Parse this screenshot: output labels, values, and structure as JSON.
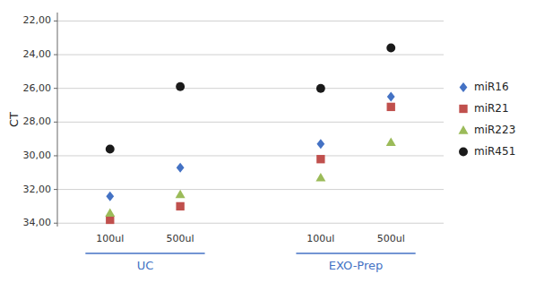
{
  "chart_data": {
    "type": "scatter",
    "y_label": "CT",
    "categories": [
      "100ul",
      "500ul",
      "100ul",
      "500ul"
    ],
    "x_groups": [
      {
        "label": "UC",
        "span": 2,
        "color": "#4472C4"
      },
      {
        "label": "EXO-Prep",
        "span": 2,
        "color": "#4472C4"
      }
    ],
    "ylim": [
      34.2,
      21.5
    ],
    "yticks": [
      {
        "value": 22,
        "label": "22,00"
      },
      {
        "value": 24,
        "label": "24,00"
      },
      {
        "value": 26,
        "label": "26,00"
      },
      {
        "value": 28,
        "label": "28,00"
      },
      {
        "value": 30,
        "label": "30,00"
      },
      {
        "value": 32,
        "label": "32,00"
      },
      {
        "value": 34,
        "label": "34,00"
      }
    ],
    "grid": true,
    "legend": "right",
    "series": [
      {
        "name": "miR16",
        "color": "#4472C4",
        "marker": "diamond",
        "values": [
          32.4,
          30.7,
          29.3,
          26.5
        ]
      },
      {
        "name": "miR21",
        "color": "#C0504D",
        "marker": "square",
        "values": [
          33.8,
          33.0,
          30.2,
          27.1
        ]
      },
      {
        "name": "miR223",
        "color": "#9BBB59",
        "marker": "triangle",
        "values": [
          33.4,
          32.3,
          31.3,
          29.2
        ]
      },
      {
        "name": "miR451",
        "color": "#1a1a1a",
        "marker": "circle",
        "values": [
          29.6,
          25.9,
          26.0,
          23.6
        ]
      }
    ]
  }
}
